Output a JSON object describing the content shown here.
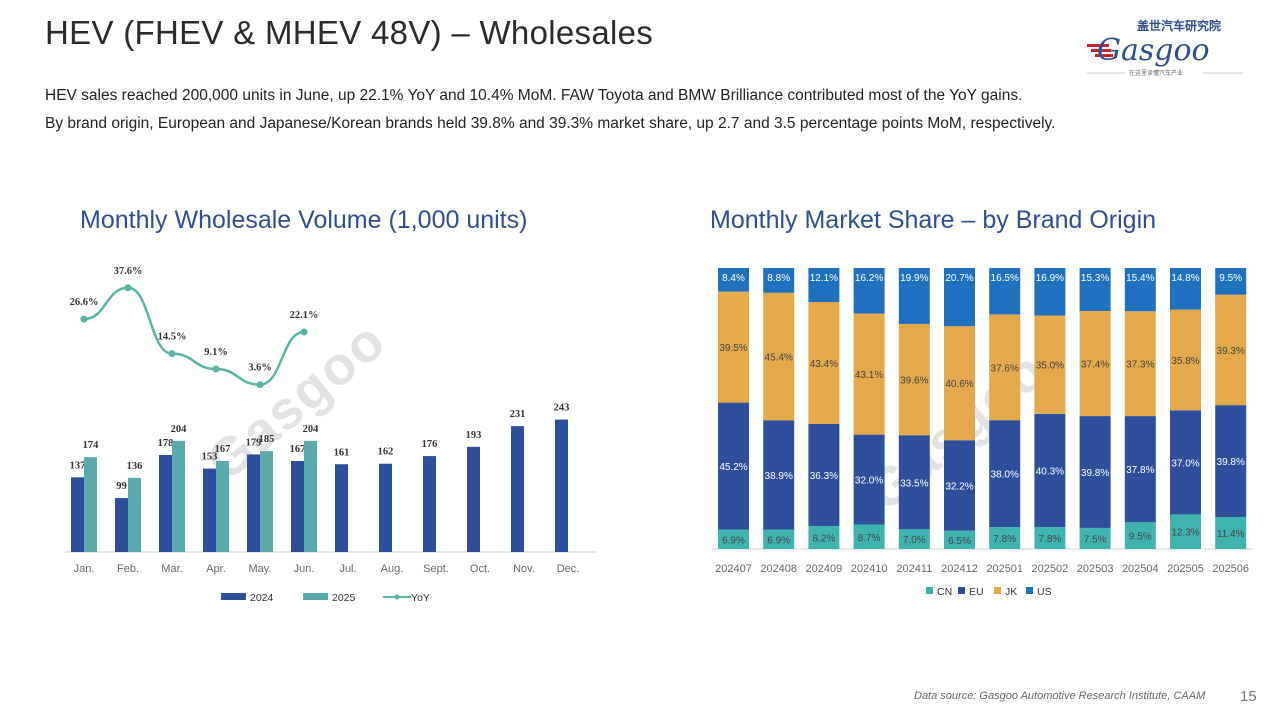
{
  "header": {
    "title": "HEV (FHEV & MHEV 48V) – Wholesales",
    "summary_line1": "HEV sales reached 200,000 units in June, up 22.1% YoY and 10.4% MoM. FAW Toyota and BMW Brilliance contributed most of the YoY gains.",
    "summary_line2": "By brand origin, European and Japanese/Korean brands held 39.8% and 39.3% market share, up 2.7 and 3.5 percentage points MoM, respectively."
  },
  "logo": {
    "cn_text": "盖世汽车研究院",
    "brand": "Gasgoo",
    "tagline": "在这里读懂汽车产业"
  },
  "footer": {
    "source": "Data source: Gasgoo Automotive Research Institute, CAAM",
    "page_number": "15"
  },
  "colors": {
    "bar_2024": "#2e4f9b",
    "bar_2025": "#5aa9ad",
    "yoy_line": "#58b5a4",
    "CN": "#3fb4ae",
    "EU": "#2e4f9b",
    "JK": "#e3a94b",
    "US": "#1f70bf",
    "title_blue": "#2e4f8f"
  },
  "chart_data": [
    {
      "type": "bar",
      "title": "Monthly Wholesale Volume (1,000 units)",
      "categories": [
        "Jan.",
        "Feb.",
        "Mar.",
        "Apr.",
        "May.",
        "Jun.",
        "Jul.",
        "Aug.",
        "Sept.",
        "Oct.",
        "Nov.",
        "Dec."
      ],
      "series": [
        {
          "name": "2024",
          "values": [
            137,
            99,
            178,
            153,
            179,
            167,
            161,
            162,
            176,
            193,
            231,
            243
          ]
        },
        {
          "name": "2025",
          "values": [
            174,
            136,
            204,
            167,
            185,
            204,
            null,
            null,
            null,
            null,
            null,
            null
          ]
        }
      ],
      "line_series": {
        "name": "YoY",
        "values": [
          26.6,
          37.6,
          14.5,
          9.1,
          3.6,
          22.1,
          null,
          null,
          null,
          null,
          null,
          null
        ],
        "labels": [
          "26.6%",
          "37.6%",
          "14.5%",
          "9.1%",
          "3.6%",
          "22.1%"
        ]
      },
      "legend": [
        "2024",
        "2025",
        "YoY"
      ],
      "legend_position": "bottom",
      "grid": false
    },
    {
      "type": "bar",
      "stacked": true,
      "title": "Monthly Market Share – by Brand Origin",
      "categories": [
        "202407",
        "202408",
        "202409",
        "202410",
        "202411",
        "202412",
        "202501",
        "202502",
        "202503",
        "202504",
        "202505",
        "202506"
      ],
      "series": [
        {
          "name": "CN",
          "values": [
            6.9,
            6.9,
            8.2,
            8.7,
            7.0,
            6.5,
            7.8,
            7.8,
            7.5,
            9.5,
            12.3,
            11.4
          ]
        },
        {
          "name": "EU",
          "values": [
            45.2,
            38.9,
            36.3,
            32.0,
            33.5,
            32.2,
            38.0,
            40.3,
            39.8,
            37.8,
            37.0,
            39.8
          ]
        },
        {
          "name": "JK",
          "values": [
            39.5,
            45.4,
            43.4,
            43.1,
            39.6,
            40.6,
            37.6,
            35.0,
            37.4,
            37.3,
            35.8,
            39.3
          ]
        },
        {
          "name": "US",
          "values": [
            8.4,
            8.8,
            12.1,
            16.2,
            19.9,
            20.7,
            16.5,
            16.9,
            15.3,
            15.4,
            14.8,
            9.5
          ]
        }
      ],
      "ylim": [
        0,
        100
      ],
      "legend": [
        "CN",
        "EU",
        "JK",
        "US"
      ],
      "legend_position": "bottom",
      "grid": false
    }
  ]
}
